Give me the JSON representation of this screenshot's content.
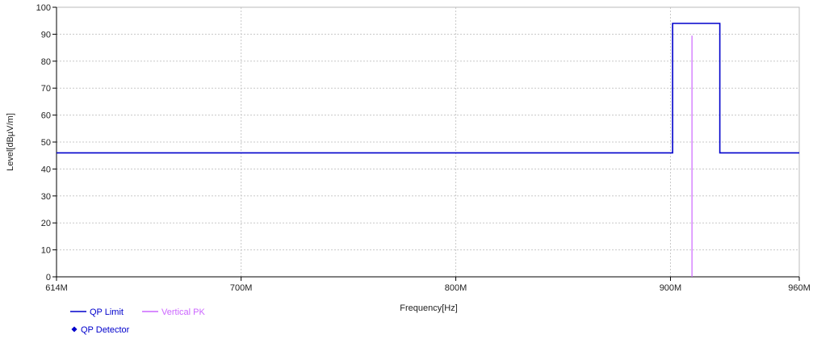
{
  "chart_data": {
    "type": "line",
    "xlabel": "Frequency[Hz]",
    "ylabel": "Level[dBµV/m]",
    "xlim": [
      614,
      960
    ],
    "ylim": [
      0,
      100
    ],
    "x_unit": "MHz",
    "x_ticks": [
      {
        "value": 614,
        "label": "614M"
      },
      {
        "value": 700,
        "label": "700M"
      },
      {
        "value": 800,
        "label": "800M"
      },
      {
        "value": 900,
        "label": "900M"
      },
      {
        "value": 960,
        "label": "960M"
      }
    ],
    "y_ticks": [
      0,
      10,
      20,
      30,
      40,
      50,
      60,
      70,
      80,
      90,
      100
    ],
    "grid": true,
    "series": [
      {
        "name": "QP Limit",
        "kind": "line",
        "color": "#0000cc",
        "points": [
          [
            614,
            46
          ],
          [
            901,
            46
          ],
          [
            901,
            94
          ],
          [
            923,
            94
          ],
          [
            923,
            46
          ],
          [
            960,
            46
          ]
        ]
      },
      {
        "name": "Vertical PK",
        "kind": "line",
        "color": "#cc66ff",
        "points": [
          [
            910,
            0
          ],
          [
            910,
            89.5
          ]
        ]
      },
      {
        "name": "QP Detector",
        "kind": "scatter",
        "color": "#0000cc",
        "points": []
      }
    ],
    "legend_position": "bottom-left"
  }
}
